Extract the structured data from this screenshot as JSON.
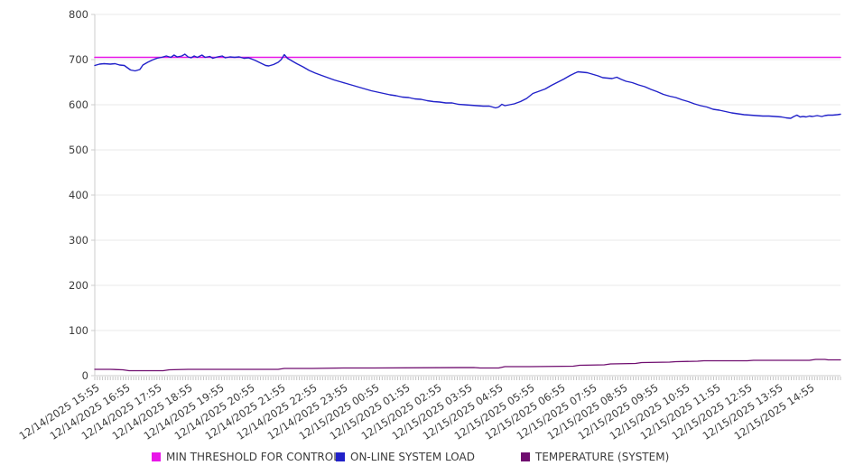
{
  "chart_data": {
    "type": "line",
    "title": "",
    "xlabel": "",
    "ylabel": "",
    "ylim": [
      0,
      800
    ],
    "xlim": [
      0,
      24
    ],
    "yticks": [
      0,
      100,
      200,
      300,
      400,
      500,
      600,
      700,
      800
    ],
    "grid": "horizontal",
    "legend_position": "bottom",
    "minor_ticks_per_hour": 12,
    "categories": [
      "12/14/2025 15:55",
      "12/14/2025 16:55",
      "12/14/2025 17:55",
      "12/14/2025 18:55",
      "12/14/2025 19:55",
      "12/14/2025 20:55",
      "12/14/2025 21:55",
      "12/14/2025 22:55",
      "12/14/2025 23:55",
      "12/15/2025 00:55",
      "12/15/2025 01:55",
      "12/15/2025 02:55",
      "12/15/2025 03:55",
      "12/15/2025 04:55",
      "12/15/2025 05:55",
      "12/15/2025 06:55",
      "12/15/2025 07:55",
      "12/15/2025 08:55",
      "12/15/2025 09:55",
      "12/15/2025 10:55",
      "12/15/2025 11:55",
      "12/15/2025 12:55",
      "12/15/2025 13:55",
      "12/15/2025 14:55"
    ],
    "series": [
      {
        "name": "MIN THRESHOLD FOR CONTROL",
        "color": "#e816e8",
        "width": 1.6,
        "points": [
          [
            0,
            705
          ],
          [
            24,
            705
          ]
        ]
      },
      {
        "name": "ON-LINE SYSTEM LOAD",
        "color": "#2121c9",
        "width": 1.4,
        "points": [
          [
            0,
            687
          ],
          [
            0.15,
            690
          ],
          [
            0.3,
            691
          ],
          [
            0.5,
            690
          ],
          [
            0.65,
            691
          ],
          [
            0.8,
            688
          ],
          [
            0.95,
            687
          ],
          [
            1.05,
            682
          ],
          [
            1.15,
            677
          ],
          [
            1.3,
            675
          ],
          [
            1.45,
            678
          ],
          [
            1.55,
            688
          ],
          [
            1.7,
            694
          ],
          [
            1.85,
            699
          ],
          [
            2,
            703
          ],
          [
            2.15,
            705
          ],
          [
            2.3,
            708
          ],
          [
            2.45,
            705
          ],
          [
            2.55,
            710
          ],
          [
            2.65,
            706
          ],
          [
            2.8,
            708
          ],
          [
            2.9,
            712
          ],
          [
            3,
            706
          ],
          [
            3.1,
            704
          ],
          [
            3.2,
            708
          ],
          [
            3.3,
            705
          ],
          [
            3.45,
            710
          ],
          [
            3.55,
            705
          ],
          [
            3.7,
            707
          ],
          [
            3.8,
            703
          ],
          [
            3.95,
            706
          ],
          [
            4.1,
            708
          ],
          [
            4.2,
            704
          ],
          [
            4.35,
            706
          ],
          [
            4.5,
            705
          ],
          [
            4.65,
            706
          ],
          [
            4.8,
            703
          ],
          [
            4.95,
            704
          ],
          [
            5.1,
            700
          ],
          [
            5.2,
            697
          ],
          [
            5.35,
            692
          ],
          [
            5.5,
            687
          ],
          [
            5.6,
            686
          ],
          [
            5.75,
            689
          ],
          [
            5.9,
            694
          ],
          [
            6,
            700
          ],
          [
            6.1,
            711
          ],
          [
            6.2,
            703
          ],
          [
            6.35,
            697
          ],
          [
            6.5,
            691
          ],
          [
            6.7,
            684
          ],
          [
            6.9,
            676
          ],
          [
            7.1,
            670
          ],
          [
            7.3,
            665
          ],
          [
            7.5,
            660
          ],
          [
            7.7,
            655
          ],
          [
            7.9,
            651
          ],
          [
            8.1,
            647
          ],
          [
            8.3,
            643
          ],
          [
            8.5,
            639
          ],
          [
            8.7,
            635
          ],
          [
            8.9,
            631
          ],
          [
            9.1,
            628
          ],
          [
            9.3,
            625
          ],
          [
            9.5,
            622
          ],
          [
            9.7,
            620
          ],
          [
            9.9,
            617
          ],
          [
            10.1,
            616
          ],
          [
            10.3,
            613
          ],
          [
            10.5,
            612
          ],
          [
            10.7,
            609
          ],
          [
            10.9,
            607
          ],
          [
            11.1,
            606
          ],
          [
            11.3,
            604
          ],
          [
            11.5,
            604
          ],
          [
            11.7,
            601
          ],
          [
            11.9,
            600
          ],
          [
            12.1,
            599
          ],
          [
            12.3,
            598
          ],
          [
            12.5,
            597
          ],
          [
            12.7,
            597
          ],
          [
            12.9,
            593
          ],
          [
            13,
            595
          ],
          [
            13.1,
            601
          ],
          [
            13.2,
            598
          ],
          [
            13.35,
            600
          ],
          [
            13.5,
            602
          ],
          [
            13.7,
            607
          ],
          [
            13.9,
            614
          ],
          [
            14.1,
            625
          ],
          [
            14.3,
            630
          ],
          [
            14.5,
            635
          ],
          [
            14.7,
            643
          ],
          [
            14.9,
            650
          ],
          [
            15.1,
            657
          ],
          [
            15.3,
            665
          ],
          [
            15.45,
            670
          ],
          [
            15.55,
            673
          ],
          [
            15.7,
            672
          ],
          [
            15.85,
            671
          ],
          [
            16,
            668
          ],
          [
            16.2,
            664
          ],
          [
            16.35,
            660
          ],
          [
            16.5,
            659
          ],
          [
            16.65,
            658
          ],
          [
            16.8,
            661
          ],
          [
            16.95,
            656
          ],
          [
            17.1,
            652
          ],
          [
            17.3,
            649
          ],
          [
            17.5,
            644
          ],
          [
            17.7,
            640
          ],
          [
            17.9,
            634
          ],
          [
            18.1,
            629
          ],
          [
            18.3,
            623
          ],
          [
            18.5,
            619
          ],
          [
            18.7,
            616
          ],
          [
            18.9,
            611
          ],
          [
            19.1,
            607
          ],
          [
            19.3,
            602
          ],
          [
            19.5,
            598
          ],
          [
            19.7,
            595
          ],
          [
            19.9,
            590
          ],
          [
            20.1,
            588
          ],
          [
            20.3,
            585
          ],
          [
            20.5,
            582
          ],
          [
            20.7,
            580
          ],
          [
            20.9,
            578
          ],
          [
            21.1,
            577
          ],
          [
            21.3,
            576
          ],
          [
            21.5,
            575
          ],
          [
            21.7,
            575
          ],
          [
            21.9,
            574
          ],
          [
            22.1,
            573
          ],
          [
            22.25,
            571
          ],
          [
            22.4,
            570
          ],
          [
            22.5,
            574
          ],
          [
            22.6,
            577
          ],
          [
            22.7,
            573
          ],
          [
            22.8,
            574
          ],
          [
            22.9,
            573
          ],
          [
            23,
            575
          ],
          [
            23.1,
            574
          ],
          [
            23.25,
            576
          ],
          [
            23.4,
            574
          ],
          [
            23.5,
            576
          ],
          [
            23.6,
            577
          ],
          [
            23.75,
            577
          ],
          [
            23.9,
            578
          ],
          [
            24,
            579
          ]
        ]
      },
      {
        "name": "TEMPERATURE (SYSTEM)",
        "color": "#6f0d6f",
        "width": 1.3,
        "points": [
          [
            0,
            14
          ],
          [
            0.5,
            14
          ],
          [
            0.9,
            13
          ],
          [
            1.1,
            11
          ],
          [
            2.2,
            11
          ],
          [
            2.4,
            13
          ],
          [
            3,
            14
          ],
          [
            5.9,
            14
          ],
          [
            6.1,
            16
          ],
          [
            7,
            16
          ],
          [
            8,
            17
          ],
          [
            9,
            17
          ],
          [
            12.2,
            18
          ],
          [
            12.4,
            17
          ],
          [
            13,
            17
          ],
          [
            13.2,
            20
          ],
          [
            14,
            20
          ],
          [
            15.4,
            21
          ],
          [
            15.6,
            23
          ],
          [
            16.4,
            24
          ],
          [
            16.6,
            26
          ],
          [
            17.4,
            27
          ],
          [
            17.6,
            29
          ],
          [
            18.5,
            30
          ],
          [
            18.7,
            31
          ],
          [
            19.4,
            32
          ],
          [
            19.6,
            33
          ],
          [
            21,
            33
          ],
          [
            21.2,
            34
          ],
          [
            23,
            34
          ],
          [
            23.2,
            36
          ],
          [
            23.5,
            36
          ],
          [
            23.6,
            35
          ],
          [
            24,
            35
          ]
        ]
      }
    ]
  },
  "colors": {
    "grid": "#e8e8e8",
    "axis": "#cccccc",
    "minor_tick": "#c4c4c4",
    "label_text": "#3c3c3c"
  }
}
